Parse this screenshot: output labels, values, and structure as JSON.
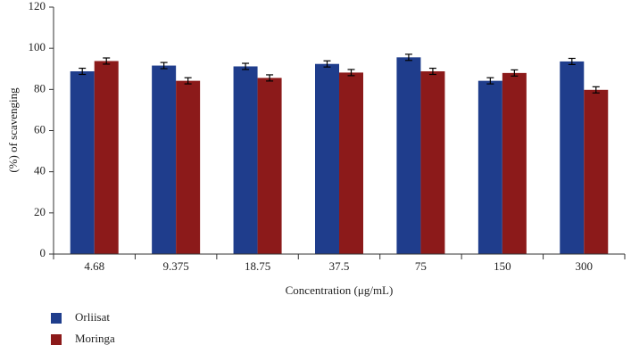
{
  "chart_data": {
    "type": "bar",
    "y_label": "(%) of scavenging",
    "x_label": "Concentration (μg/mL)",
    "categories": [
      "4.68",
      "9.375",
      "18.75",
      "37.5",
      "75",
      "150",
      "300"
    ],
    "series": [
      {
        "name": "Orliisat",
        "color": "#1f3d8c",
        "values": [
          88.8,
          91.6,
          91.2,
          92.4,
          95.6,
          84.2,
          93.6
        ],
        "errors": [
          1.5,
          1.5,
          1.5,
          1.5,
          1.5,
          1.5,
          1.5
        ]
      },
      {
        "name": "Moringa",
        "color": "#8c1a1a",
        "values": [
          93.8,
          84.2,
          85.6,
          88.2,
          88.8,
          88.0,
          79.8
        ],
        "errors": [
          1.5,
          1.5,
          1.5,
          1.5,
          1.5,
          1.5,
          1.5
        ]
      }
    ],
    "ylim": [
      0,
      120
    ],
    "yticks": [
      0,
      20,
      40,
      60,
      80,
      100,
      120
    ],
    "legend": "bottom-left"
  }
}
